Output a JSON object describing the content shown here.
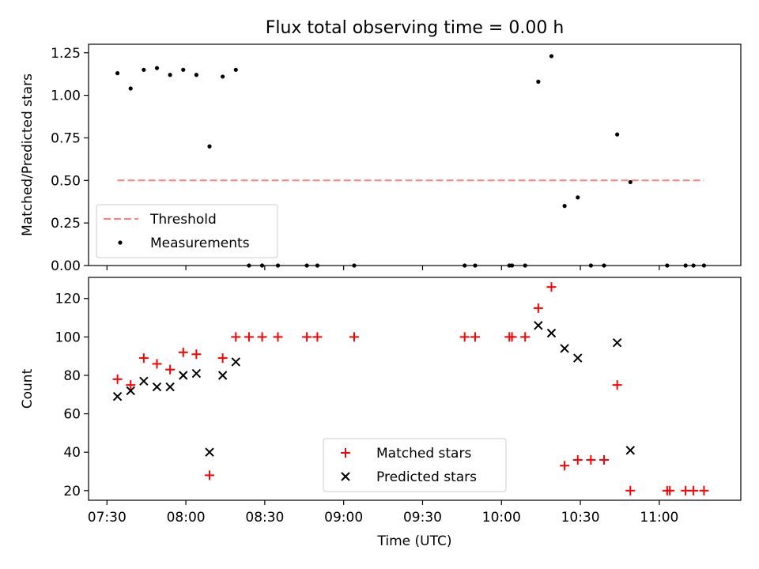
{
  "title": "Flux total observing time = 0.00 h",
  "chart_data": [
    {
      "type": "scatter",
      "ylabel": "Matched/Predicted stars",
      "ylim": [
        0,
        1.3
      ],
      "yticks": [
        "0.00",
        "0.25",
        "0.50",
        "0.75",
        "1.00",
        "1.25"
      ],
      "ytick_values": [
        0,
        0.25,
        0.5,
        0.75,
        1.0,
        1.25
      ],
      "legend_placement": "lower-left",
      "threshold": {
        "name": "Threshold",
        "value": 0.5,
        "x_start": "07:34",
        "x_end": "11:17",
        "color": "#ff8080",
        "style": "dashed"
      },
      "series": [
        {
          "name": "Measurements",
          "marker": "dot",
          "color": "#000000",
          "points": [
            [
              "07:34",
              1.13
            ],
            [
              "07:39",
              1.04
            ],
            [
              "07:44",
              1.15
            ],
            [
              "07:49",
              1.16
            ],
            [
              "07:54",
              1.12
            ],
            [
              "07:59",
              1.15
            ],
            [
              "08:04",
              1.12
            ],
            [
              "08:09",
              0.7
            ],
            [
              "08:14",
              1.11
            ],
            [
              "08:19",
              1.15
            ],
            [
              "08:24",
              0.0
            ],
            [
              "08:29",
              0.0
            ],
            [
              "08:35",
              0.0
            ],
            [
              "08:46",
              0.0
            ],
            [
              "08:50",
              0.0
            ],
            [
              "09:04",
              0.0
            ],
            [
              "09:46",
              0.0
            ],
            [
              "09:50",
              0.0
            ],
            [
              "10:03",
              0.0
            ],
            [
              "10:04",
              0.0
            ],
            [
              "10:09",
              0.0
            ],
            [
              "10:14",
              1.08
            ],
            [
              "10:19",
              1.23
            ],
            [
              "10:24",
              0.35
            ],
            [
              "10:29",
              0.4
            ],
            [
              "10:34",
              0.0
            ],
            [
              "10:39",
              0.0
            ],
            [
              "10:44",
              0.77
            ],
            [
              "10:49",
              0.49
            ],
            [
              "11:03",
              0.0
            ],
            [
              "11:10",
              0.0
            ],
            [
              "11:13",
              0.0
            ],
            [
              "11:17",
              0.0
            ]
          ]
        }
      ]
    },
    {
      "type": "scatter",
      "xlabel": "Time (UTC)",
      "ylabel": "Count",
      "ylim": [
        15,
        131
      ],
      "yticks": [
        "20",
        "40",
        "60",
        "80",
        "100",
        "120"
      ],
      "ytick_values": [
        20,
        40,
        60,
        80,
        100,
        120
      ],
      "xlim": [
        "07:23",
        "11:31"
      ],
      "xticks": [
        "07:30",
        "08:00",
        "08:30",
        "09:00",
        "09:30",
        "10:00",
        "10:30",
        "11:00"
      ],
      "legend_placement": "lower-center",
      "series": [
        {
          "name": "Matched stars",
          "marker": "plus",
          "color": "#ff0000",
          "points": [
            [
              "07:34",
              78
            ],
            [
              "07:39",
              75
            ],
            [
              "07:44",
              89
            ],
            [
              "07:49",
              86
            ],
            [
              "07:54",
              83
            ],
            [
              "07:59",
              92
            ],
            [
              "08:04",
              91
            ],
            [
              "08:09",
              28
            ],
            [
              "08:14",
              89
            ],
            [
              "08:19",
              100
            ],
            [
              "08:24",
              100
            ],
            [
              "08:29",
              100
            ],
            [
              "08:35",
              100
            ],
            [
              "08:46",
              100
            ],
            [
              "08:50",
              100
            ],
            [
              "09:04",
              100
            ],
            [
              "09:46",
              100
            ],
            [
              "09:50",
              100
            ],
            [
              "10:03",
              100
            ],
            [
              "10:04",
              100
            ],
            [
              "10:09",
              100
            ],
            [
              "10:14",
              115
            ],
            [
              "10:19",
              126
            ],
            [
              "10:24",
              33
            ],
            [
              "10:29",
              36
            ],
            [
              "10:34",
              36
            ],
            [
              "10:39",
              36
            ],
            [
              "10:44",
              75
            ],
            [
              "10:49",
              20
            ],
            [
              "11:03",
              20
            ],
            [
              "11:04",
              20
            ],
            [
              "11:10",
              20
            ],
            [
              "11:13",
              20
            ],
            [
              "11:17",
              20
            ]
          ]
        },
        {
          "name": "Predicted stars",
          "marker": "x",
          "color": "#000000",
          "points": [
            [
              "07:34",
              69
            ],
            [
              "07:39",
              72
            ],
            [
              "07:44",
              77
            ],
            [
              "07:49",
              74
            ],
            [
              "07:54",
              74
            ],
            [
              "07:59",
              80
            ],
            [
              "08:04",
              81
            ],
            [
              "08:09",
              40
            ],
            [
              "08:14",
              80
            ],
            [
              "08:19",
              87
            ],
            [
              "10:14",
              106
            ],
            [
              "10:19",
              102
            ],
            [
              "10:24",
              94
            ],
            [
              "10:29",
              89
            ],
            [
              "10:44",
              97
            ],
            [
              "10:49",
              41
            ]
          ]
        }
      ]
    }
  ]
}
